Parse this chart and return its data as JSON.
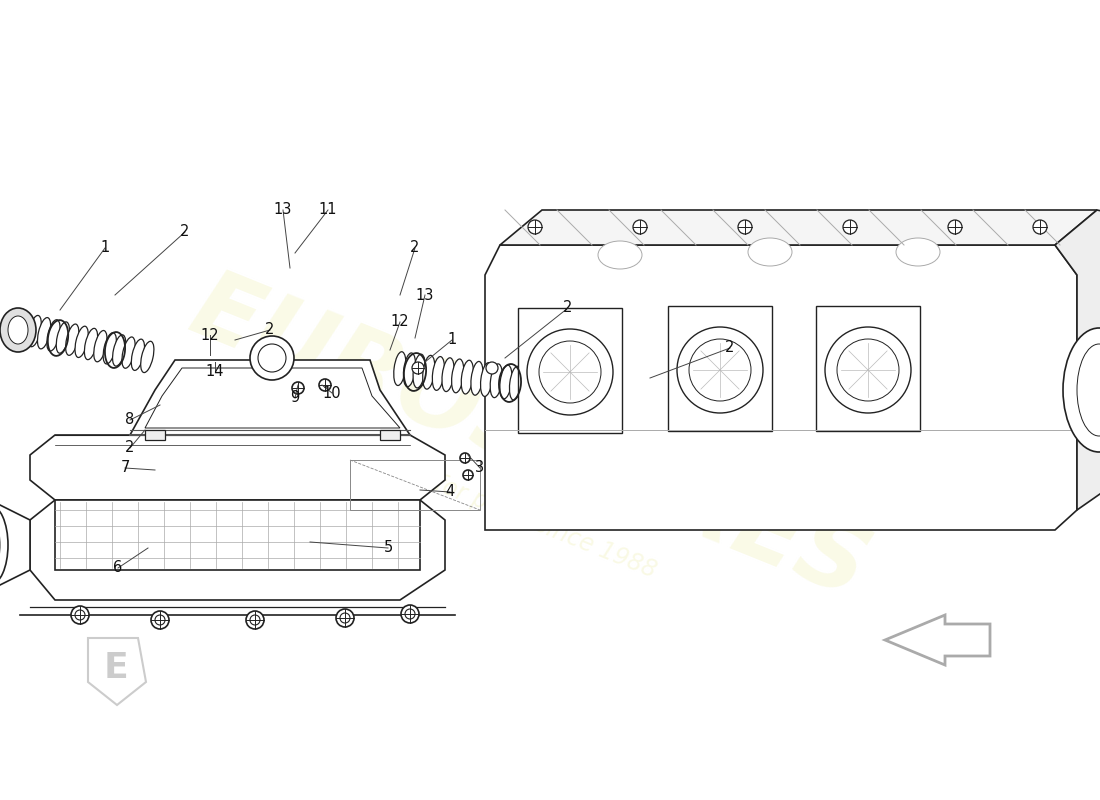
{
  "bg_color": "#ffffff",
  "line_color": "#222222",
  "watermark_color": "#f5f5d0",
  "watermark_text1": "EUROSPARES",
  "watermark_text2": "a passion for parts since 1988",
  "figsize": [
    11.0,
    8.0
  ],
  "dpi": 100,
  "labels": [
    [
      "1",
      105,
      248,
      60,
      310
    ],
    [
      "2",
      185,
      232,
      115,
      295
    ],
    [
      "13",
      283,
      210,
      290,
      268
    ],
    [
      "11",
      328,
      210,
      295,
      253
    ],
    [
      "2",
      270,
      330,
      235,
      340
    ],
    [
      "12",
      210,
      335,
      210,
      355
    ],
    [
      "14",
      215,
      372,
      215,
      362
    ],
    [
      "9",
      295,
      398,
      298,
      385
    ],
    [
      "10",
      332,
      393,
      322,
      385
    ],
    [
      "12",
      400,
      322,
      390,
      350
    ],
    [
      "13",
      425,
      295,
      415,
      338
    ],
    [
      "2",
      415,
      248,
      400,
      295
    ],
    [
      "1",
      452,
      340,
      425,
      362
    ],
    [
      "2",
      568,
      308,
      505,
      358
    ],
    [
      "2",
      130,
      448,
      145,
      430
    ],
    [
      "8",
      130,
      420,
      160,
      405
    ],
    [
      "7",
      125,
      468,
      155,
      470
    ],
    [
      "3",
      480,
      468,
      468,
      455
    ],
    [
      "4",
      450,
      492,
      420,
      490
    ],
    [
      "5",
      388,
      548,
      310,
      542
    ],
    [
      "6",
      118,
      568,
      148,
      548
    ],
    [
      "2",
      730,
      348,
      650,
      378
    ]
  ]
}
